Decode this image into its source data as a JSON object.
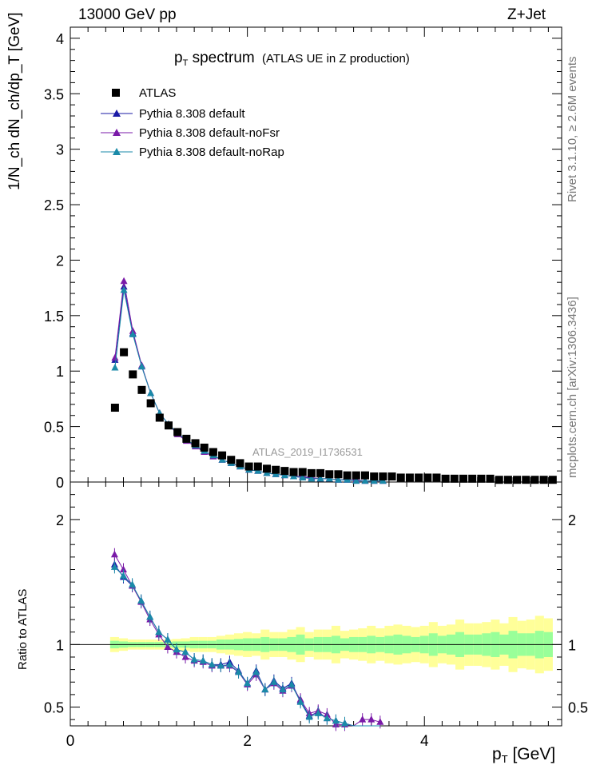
{
  "header": {
    "left": "13000 GeV pp",
    "right": "Z+Jet"
  },
  "side_labels": {
    "rivet": "Rivet 3.1.10, ≥ 2.6M events",
    "mcplots": "mcplots.cern.ch [arXiv:1306.3436]"
  },
  "watermark": "ATLAS_2019_I1736531",
  "colors": {
    "atlas": "#000000",
    "default": "#1a1aa6",
    "noFsr": "#7a1aa8",
    "noRap": "#1a8aa8",
    "band_inner": "#99ff99",
    "band_outer": "#ffff99"
  },
  "chart_data": [
    {
      "type": "scatter",
      "title": "p_T spectrum (ATLAS UE in Z production)",
      "title_main": "p",
      "title_sub": "T",
      "title_rest": " spectrum",
      "title_note": "(ATLAS UE in Z production)",
      "ylabel": "1/N_ch dN_ch/dp_T [GeV]",
      "ylim": [
        0,
        4.1
      ],
      "yticks": [
        "0",
        "0.5",
        "1",
        "1.5",
        "2",
        "2.5",
        "3",
        "3.5",
        "4"
      ],
      "xlim": [
        0,
        5.5
      ],
      "legend_position": "top-left",
      "series": [
        {
          "name": "ATLAS",
          "key": "atlas",
          "marker": "square",
          "x": [
            0.5,
            0.6,
            0.7,
            0.8,
            0.9,
            1.0,
            1.1,
            1.2,
            1.3,
            1.4,
            1.5,
            1.6,
            1.7,
            1.8,
            1.9,
            2.0,
            2.1,
            2.2,
            2.3,
            2.4,
            2.5,
            2.6,
            2.7,
            2.8,
            2.9,
            3.0,
            3.1,
            3.2,
            3.3,
            3.4,
            3.5,
            3.6,
            3.7,
            3.8,
            3.9,
            4.0,
            4.1,
            4.2,
            4.3,
            4.4,
            4.5,
            4.6,
            4.7,
            4.8,
            4.9,
            5.0,
            5.1,
            5.2,
            5.3,
            5.4
          ],
          "y": [
            0.67,
            1.17,
            0.97,
            0.83,
            0.71,
            0.58,
            0.51,
            0.45,
            0.39,
            0.35,
            0.31,
            0.27,
            0.24,
            0.2,
            0.17,
            0.14,
            0.14,
            0.12,
            0.11,
            0.1,
            0.09,
            0.09,
            0.08,
            0.08,
            0.07,
            0.07,
            0.06,
            0.06,
            0.06,
            0.05,
            0.05,
            0.05,
            0.04,
            0.04,
            0.04,
            0.04,
            0.04,
            0.03,
            0.03,
            0.03,
            0.03,
            0.03,
            0.03,
            0.02,
            0.02,
            0.02,
            0.02,
            0.02,
            0.02,
            0.02
          ]
        },
        {
          "name": "Pythia 8.308 default",
          "key": "default",
          "marker": "triangle",
          "x": [
            0.5,
            0.6,
            0.7,
            0.8,
            0.9,
            1.0,
            1.1,
            1.2,
            1.3,
            1.4,
            1.5,
            1.6,
            1.7,
            1.8,
            1.9,
            2.0,
            2.1,
            2.2,
            2.3,
            2.4,
            2.5,
            2.6,
            2.7,
            2.8,
            2.9,
            3.0,
            3.1,
            3.2,
            3.3,
            3.4,
            3.5
          ],
          "y": [
            1.1,
            1.76,
            1.34,
            1.04,
            0.8,
            0.62,
            0.52,
            0.44,
            0.38,
            0.33,
            0.28,
            0.24,
            0.2,
            0.17,
            0.14,
            0.11,
            0.1,
            0.08,
            0.07,
            0.06,
            0.05,
            0.04,
            0.04,
            0.03,
            0.03,
            0.02,
            0.02,
            0.01,
            0.01,
            0.01,
            0.01
          ]
        },
        {
          "name": "Pythia 8.308 default-noFsr",
          "key": "noFsr",
          "marker": "triangle",
          "x": [
            0.5,
            0.6,
            0.7,
            0.8,
            0.9,
            1.0,
            1.1,
            1.2,
            1.3,
            1.4,
            1.5,
            1.6,
            1.7,
            1.8,
            1.9,
            2.0,
            2.1,
            2.2,
            2.3,
            2.4,
            2.5,
            2.6,
            2.7,
            2.8,
            2.9,
            3.0,
            3.1,
            3.2,
            3.3,
            3.4,
            3.5
          ],
          "y": [
            1.12,
            1.81,
            1.36,
            1.05,
            0.8,
            0.62,
            0.52,
            0.43,
            0.37,
            0.32,
            0.27,
            0.23,
            0.2,
            0.17,
            0.14,
            0.11,
            0.1,
            0.08,
            0.07,
            0.06,
            0.05,
            0.05,
            0.04,
            0.03,
            0.03,
            0.02,
            0.02,
            0.02,
            0.01,
            0.01,
            0.01
          ]
        },
        {
          "name": "Pythia 8.308 default-noRap",
          "key": "noRap",
          "marker": "triangle",
          "x": [
            0.5,
            0.6,
            0.7,
            0.8,
            0.9,
            1.0,
            1.1,
            1.2,
            1.3,
            1.4,
            1.5,
            1.6,
            1.7,
            1.8,
            1.9,
            2.0,
            2.1,
            2.2,
            2.3,
            2.4,
            2.5,
            2.6,
            2.7,
            2.8,
            2.9,
            3.0,
            3.1,
            3.2,
            3.3,
            3.4,
            3.5
          ],
          "y": [
            1.03,
            1.73,
            1.33,
            1.04,
            0.8,
            0.62,
            0.52,
            0.44,
            0.38,
            0.33,
            0.28,
            0.24,
            0.2,
            0.17,
            0.14,
            0.11,
            0.1,
            0.08,
            0.07,
            0.06,
            0.05,
            0.04,
            0.03,
            0.03,
            0.03,
            0.02,
            0.02,
            0.01,
            0.01,
            0.01,
            0.01
          ]
        }
      ]
    },
    {
      "type": "line",
      "ylabel": "Ratio to ATLAS",
      "xlabel": "p_T [GeV]",
      "xlabel_main": "p",
      "xlabel_sub": "T",
      "xlabel_rest": " [GeV]",
      "ylim": [
        0.35,
        2.3
      ],
      "yticks": [
        "0.5",
        "1",
        "2"
      ],
      "xticks": [
        "0",
        "2",
        "4"
      ],
      "xlim": [
        0,
        5.55
      ],
      "bands": {
        "x": [
          0.45,
          0.55,
          0.65,
          0.75,
          0.85,
          0.95,
          1.05,
          1.15,
          1.25,
          1.35,
          1.45,
          1.55,
          1.65,
          1.75,
          1.85,
          1.95,
          2.05,
          2.15,
          2.25,
          2.35,
          2.45,
          2.55,
          2.65,
          2.75,
          2.85,
          2.95,
          3.05,
          3.15,
          3.25,
          3.35,
          3.45,
          3.55,
          3.65,
          3.75,
          3.85,
          3.95,
          4.05,
          4.15,
          4.25,
          4.35,
          4.45,
          4.55,
          4.65,
          4.75,
          4.85,
          4.95,
          5.05,
          5.15,
          5.25,
          5.35,
          5.45
        ],
        "inner": [
          0.03,
          0.025,
          0.02,
          0.02,
          0.02,
          0.02,
          0.02,
          0.025,
          0.025,
          0.03,
          0.03,
          0.03,
          0.04,
          0.04,
          0.045,
          0.05,
          0.05,
          0.06,
          0.05,
          0.05,
          0.06,
          0.08,
          0.05,
          0.06,
          0.06,
          0.07,
          0.05,
          0.06,
          0.06,
          0.07,
          0.06,
          0.07,
          0.08,
          0.07,
          0.06,
          0.07,
          0.09,
          0.07,
          0.08,
          0.1,
          0.08,
          0.08,
          0.09,
          0.1,
          0.08,
          0.11,
          0.09,
          0.09,
          0.11,
          0.1
        ],
        "outer": [
          0.06,
          0.05,
          0.04,
          0.04,
          0.04,
          0.04,
          0.04,
          0.045,
          0.05,
          0.06,
          0.06,
          0.06,
          0.07,
          0.08,
          0.09,
          0.1,
          0.09,
          0.12,
          0.1,
          0.1,
          0.12,
          0.14,
          0.1,
          0.12,
          0.12,
          0.15,
          0.11,
          0.12,
          0.13,
          0.15,
          0.13,
          0.15,
          0.16,
          0.15,
          0.14,
          0.15,
          0.18,
          0.15,
          0.16,
          0.2,
          0.17,
          0.17,
          0.18,
          0.2,
          0.17,
          0.22,
          0.19,
          0.2,
          0.23,
          0.21
        ]
      },
      "series": [
        {
          "key": "default",
          "x": [
            0.5,
            0.6,
            0.7,
            0.8,
            0.9,
            1.0,
            1.1,
            1.2,
            1.3,
            1.4,
            1.5,
            1.6,
            1.7,
            1.8,
            1.9,
            2.0,
            2.1,
            2.2,
            2.3,
            2.4,
            2.5,
            2.6,
            2.7,
            2.8,
            2.9,
            3.0,
            3.1,
            3.2,
            3.3,
            3.4,
            3.5
          ],
          "y": [
            1.64,
            1.54,
            1.47,
            1.35,
            1.22,
            1.1,
            1.04,
            0.96,
            0.94,
            0.88,
            0.87,
            0.84,
            0.84,
            0.86,
            0.79,
            0.69,
            0.79,
            0.64,
            0.71,
            0.65,
            0.69,
            0.55,
            0.43,
            0.46,
            0.41,
            0.39,
            0.37,
            0.33,
            0.33,
            0.32,
            0.31
          ]
        },
        {
          "key": "noFsr",
          "x": [
            0.5,
            0.6,
            0.7,
            0.8,
            0.9,
            1.0,
            1.1,
            1.2,
            1.3,
            1.4,
            1.5,
            1.6,
            1.7,
            1.8,
            1.9,
            2.0,
            2.1,
            2.2,
            2.3,
            2.4,
            2.5,
            2.6,
            2.7,
            2.8,
            2.9,
            3.0,
            3.1,
            3.2,
            3.3,
            3.4,
            3.5
          ],
          "y": [
            1.72,
            1.6,
            1.47,
            1.34,
            1.2,
            1.08,
            0.98,
            0.94,
            0.9,
            0.87,
            0.86,
            0.83,
            0.83,
            0.83,
            0.78,
            0.68,
            0.76,
            0.64,
            0.69,
            0.63,
            0.67,
            0.56,
            0.45,
            0.47,
            0.44,
            0.36,
            0.36,
            0.34,
            0.4,
            0.4,
            0.38
          ]
        },
        {
          "key": "noRap",
          "x": [
            0.5,
            0.6,
            0.7,
            0.8,
            0.9,
            1.0,
            1.1,
            1.2,
            1.3,
            1.4,
            1.5,
            1.6,
            1.7,
            1.8,
            1.9,
            2.0,
            2.1,
            2.2,
            2.3,
            2.4,
            2.5,
            2.6,
            2.7,
            2.8,
            2.9,
            3.0,
            3.1,
            3.2,
            3.3,
            3.4,
            3.5
          ],
          "y": [
            1.62,
            1.55,
            1.48,
            1.35,
            1.22,
            1.1,
            1.04,
            0.96,
            0.94,
            0.88,
            0.87,
            0.84,
            0.83,
            0.84,
            0.78,
            0.69,
            0.78,
            0.64,
            0.7,
            0.64,
            0.68,
            0.54,
            0.42,
            0.45,
            0.41,
            0.39,
            0.37,
            0.33,
            0.33,
            0.32,
            0.3
          ]
        }
      ]
    }
  ]
}
